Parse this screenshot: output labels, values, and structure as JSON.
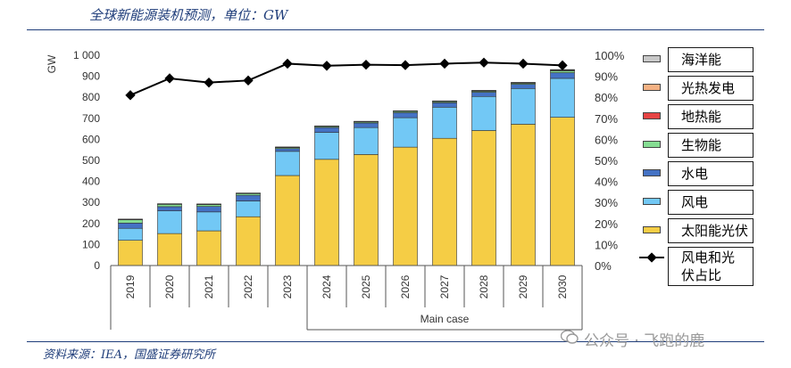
{
  "header": {
    "title": "全球新能源装机预测，单位：GW"
  },
  "footer": {
    "source": "资料来源：IEA，国盛证券研究所",
    "watermark": "公众号 · 飞跑的鹿"
  },
  "colors": {
    "solar": "#f5cd45",
    "wind": "#72c8f5",
    "hydro": "#4472c4",
    "bio": "#85dd92",
    "geo": "#e64343",
    "csp": "#f4b183",
    "ocean": "#c8c8c8",
    "line": "#000000"
  },
  "chart_data": {
    "type": "bar",
    "stacked": true,
    "categories": [
      "2019",
      "2020",
      "2021",
      "2022",
      "2023",
      "2024",
      "2025",
      "2026",
      "2027",
      "2028",
      "2029",
      "2030"
    ],
    "group_label": "Main case",
    "ylabel": "GW",
    "ylim": [
      0,
      1000
    ],
    "y_ticks": [
      "0",
      "100",
      "200",
      "300",
      "400",
      "500",
      "600",
      "700",
      "800",
      "900",
      "1 000"
    ],
    "y2lim": [
      0,
      100
    ],
    "y2_ticks": [
      "0%",
      "10%",
      "20%",
      "30%",
      "40%",
      "50%",
      "60%",
      "70%",
      "80%",
      "90%",
      "100%"
    ],
    "series": [
      {
        "name": "太阳能光伏",
        "color_key": "solar",
        "values": [
          120,
          152,
          165,
          232,
          428,
          505,
          528,
          563,
          605,
          642,
          672,
          705
        ]
      },
      {
        "name": "风电",
        "color_key": "wind",
        "values": [
          57,
          108,
          90,
          75,
          115,
          128,
          128,
          140,
          148,
          162,
          170,
          185
        ]
      },
      {
        "name": "水电",
        "color_key": "hydro",
        "values": [
          25,
          20,
          26,
          27,
          13,
          23,
          22,
          24,
          21,
          20,
          20,
          27
        ]
      },
      {
        "name": "生物能",
        "color_key": "bio",
        "values": [
          17,
          12,
          10,
          9,
          6,
          6,
          6,
          7,
          6,
          6,
          6,
          10
        ]
      },
      {
        "name": "地热能",
        "color_key": "geo",
        "values": [
          1,
          1,
          1,
          1,
          1,
          1,
          1,
          1,
          1,
          1,
          1,
          1
        ]
      },
      {
        "name": "光热发电",
        "color_key": "csp",
        "values": [
          1,
          1,
          1,
          1,
          1,
          1,
          1,
          1,
          1,
          1,
          1,
          2
        ]
      },
      {
        "name": "海洋能",
        "color_key": "ocean",
        "values": [
          0,
          0,
          0,
          0,
          0,
          0,
          0,
          0,
          1,
          1,
          1,
          2
        ]
      }
    ],
    "line_series": {
      "name": "风电和光伏占比",
      "axis": "right",
      "values": [
        81,
        89,
        87,
        88,
        96,
        95,
        95.5,
        95.3,
        96,
        96.5,
        96,
        95.2
      ]
    },
    "legend_placement": "right",
    "legend_order": [
      "海洋能",
      "光热发电",
      "地热能",
      "生物能",
      "水电",
      "风电",
      "太阳能光伏",
      "风电和光伏占比"
    ],
    "legend_text": [
      "海洋能",
      "光热发电",
      "地热能",
      "生物能",
      "水电",
      "风电",
      "太阳能光伏",
      "风电和光",
      "伏占比"
    ]
  }
}
